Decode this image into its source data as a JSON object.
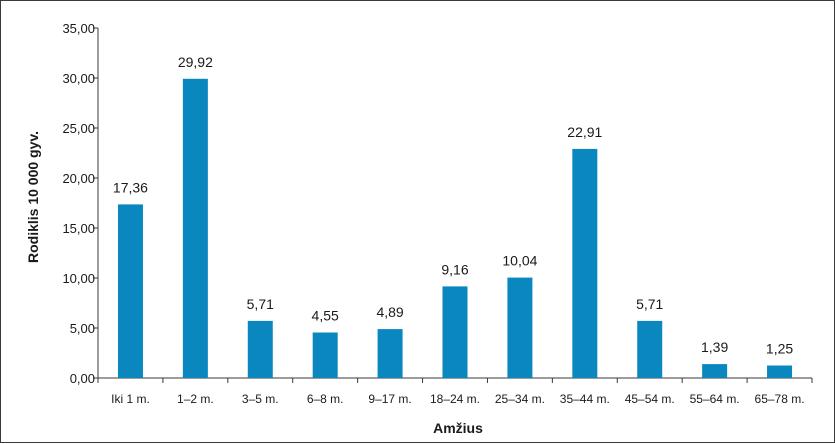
{
  "chart_data": {
    "type": "bar",
    "title": "",
    "xlabel": "Amžius",
    "ylabel": "Rodiklis 10 000 gyv.",
    "categories": [
      "Iki 1 m.",
      "1–2 m.",
      "3–5 m.",
      "6–8 m.",
      "9–17 m.",
      "18–24 m.",
      "25–34 m.",
      "35–44 m.",
      "45–54 m.",
      "55–64 m.",
      "65–78  m."
    ],
    "values": [
      17.36,
      29.92,
      5.71,
      4.55,
      4.89,
      9.16,
      10.04,
      22.91,
      5.71,
      1.39,
      1.25
    ],
    "data_labels": [
      "17,36",
      "29,92",
      "5,71",
      "4,55",
      "4,89",
      "9,16",
      "10,04",
      "22,91",
      "5,71",
      "1,39",
      "1,25"
    ],
    "yticks": [
      0,
      5,
      10,
      15,
      20,
      25,
      30,
      35
    ],
    "ytick_labels": [
      "0,00",
      "5,00",
      "10,00",
      "15,00",
      "20,00",
      "25,00",
      "30,00",
      "35,00"
    ],
    "ylim": [
      0,
      35
    ],
    "grid": false,
    "legend": "none",
    "bar_color": "#0a87bf",
    "axis_color": "#3a3a3a"
  }
}
